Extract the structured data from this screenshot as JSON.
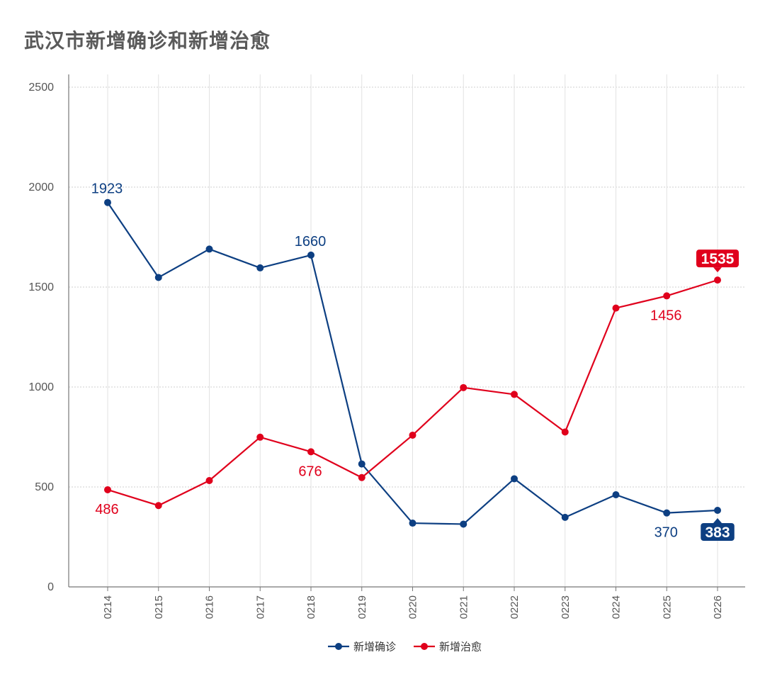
{
  "chart_data": {
    "type": "line",
    "title": "武汉市新增确诊和新增治愈",
    "categories": [
      "0214",
      "0215",
      "0216",
      "0217",
      "0218",
      "0219",
      "0220",
      "0221",
      "0222",
      "0223",
      "0224",
      "0225",
      "0226"
    ],
    "ylim": [
      0,
      2500
    ],
    "yticks": [
      0,
      500,
      1000,
      1500,
      2000,
      2500
    ],
    "grid": true,
    "legend_position": "bottom",
    "series": [
      {
        "name": "新增确诊",
        "color": "#0d3f82",
        "values": [
          1923,
          1548,
          1690,
          1596,
          1660,
          615,
          319,
          314,
          541,
          348,
          461,
          370,
          383
        ],
        "labels": [
          {
            "index": 0,
            "text": "1923",
            "pos": "above",
            "style": "plain"
          },
          {
            "index": 4,
            "text": "1660",
            "pos": "above",
            "style": "plain"
          },
          {
            "index": 11,
            "text": "370",
            "pos": "below",
            "style": "plain"
          },
          {
            "index": 12,
            "text": "383",
            "pos": "below",
            "style": "box"
          }
        ]
      },
      {
        "name": "新增治愈",
        "color": "#e0001c",
        "values": [
          486,
          407,
          532,
          749,
          676,
          547,
          759,
          997,
          963,
          775,
          1395,
          1456,
          1535
        ],
        "labels": [
          {
            "index": 0,
            "text": "486",
            "pos": "below",
            "style": "plain"
          },
          {
            "index": 4,
            "text": "676",
            "pos": "below",
            "style": "plain"
          },
          {
            "index": 11,
            "text": "1456",
            "pos": "below",
            "style": "plain"
          },
          {
            "index": 12,
            "text": "1535",
            "pos": "above",
            "style": "box"
          }
        ]
      }
    ]
  }
}
